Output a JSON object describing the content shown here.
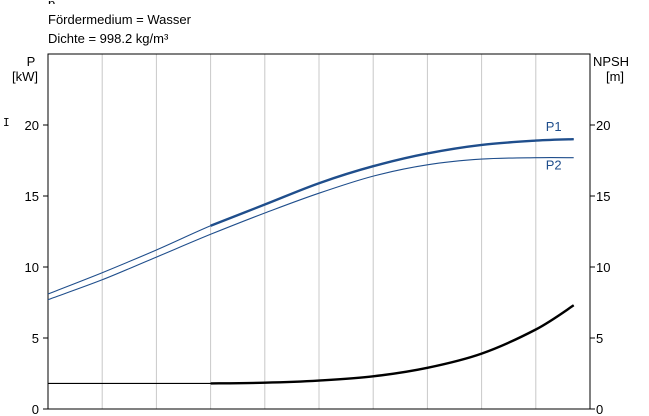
{
  "header": {
    "cut_line": "p",
    "medium": "Fördermedium = Wasser",
    "density": "Dichte = 998.2 kg/m³"
  },
  "chart_data": {
    "type": "line",
    "left_axis": {
      "label_line1": "P",
      "label_line2": "[kW]",
      "ylim": [
        0,
        20
      ],
      "ticks": [
        "0",
        "5",
        "10",
        "15",
        "20"
      ]
    },
    "right_axis": {
      "label_line1": "NPSH",
      "label_line2": "[m]",
      "ylim": [
        0,
        20
      ],
      "ticks": [
        "0",
        "5",
        "10",
        "15",
        "20"
      ]
    },
    "x_grid_count": 10,
    "grid": true,
    "series": [
      {
        "name": "P1",
        "axis": "left",
        "color": "#1f4e8c",
        "x": [
          0,
          1,
          2,
          3,
          4,
          5,
          6,
          7,
          8,
          9,
          9.7
        ],
        "values": [
          8.1,
          9.6,
          11.2,
          12.9,
          14.4,
          15.9,
          17.1,
          18.0,
          18.6,
          18.9,
          19.0
        ]
      },
      {
        "name": "P2",
        "axis": "left",
        "color": "#1f4e8c",
        "x": [
          0,
          1,
          2,
          3,
          4,
          5,
          6,
          7,
          8,
          9,
          9.7
        ],
        "values": [
          7.7,
          9.1,
          10.7,
          12.3,
          13.8,
          15.2,
          16.4,
          17.2,
          17.6,
          17.7,
          17.7
        ]
      },
      {
        "name": "",
        "axis": "right",
        "color": "#000000",
        "x": [
          0,
          3,
          4,
          5,
          6,
          7,
          8,
          9,
          9.7
        ],
        "values": [
          1.8,
          1.8,
          1.85,
          2.0,
          2.3,
          2.9,
          3.9,
          5.6,
          7.3
        ]
      }
    ]
  }
}
